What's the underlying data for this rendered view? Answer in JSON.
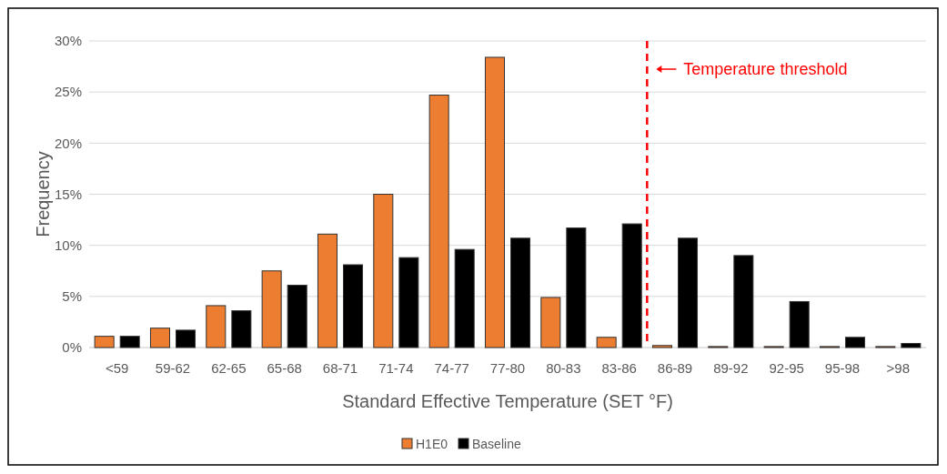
{
  "chart_data": {
    "type": "bar",
    "xlabel": "Standard Effective Temperature (SET °F)",
    "ylabel": "Frequency",
    "categories": [
      "<59",
      "59-62",
      "62-65",
      "65-68",
      "68-71",
      "71-74",
      "74-77",
      "77-80",
      "80-83",
      "83-86",
      "86-89",
      "89-92",
      "92-95",
      "95-98",
      ">98"
    ],
    "series": [
      {
        "name": "H1E0",
        "color": "#ed7d31",
        "values": [
          1.1,
          1.9,
          4.1,
          7.5,
          11.1,
          15.0,
          24.7,
          28.4,
          4.9,
          1.0,
          0.2,
          0.1,
          0.1,
          0.1,
          0.1
        ]
      },
      {
        "name": "Baseline",
        "color": "#000000",
        "values": [
          1.1,
          1.7,
          3.6,
          6.1,
          8.1,
          8.8,
          9.6,
          10.7,
          11.7,
          12.1,
          10.7,
          9.0,
          4.5,
          1.0,
          0.4
        ]
      }
    ],
    "ylim": [
      0,
      30
    ],
    "yticks": [
      {
        "value": 0,
        "label": "0%"
      },
      {
        "value": 5,
        "label": "5%"
      },
      {
        "value": 10,
        "label": "10%"
      },
      {
        "value": 15,
        "label": "15%"
      },
      {
        "value": 20,
        "label": "20%"
      },
      {
        "value": 25,
        "label": "25%"
      },
      {
        "value": 30,
        "label": "30%"
      }
    ],
    "grid": "y",
    "legend": "bottom",
    "annotations": [
      "Temperature threshold"
    ]
  }
}
